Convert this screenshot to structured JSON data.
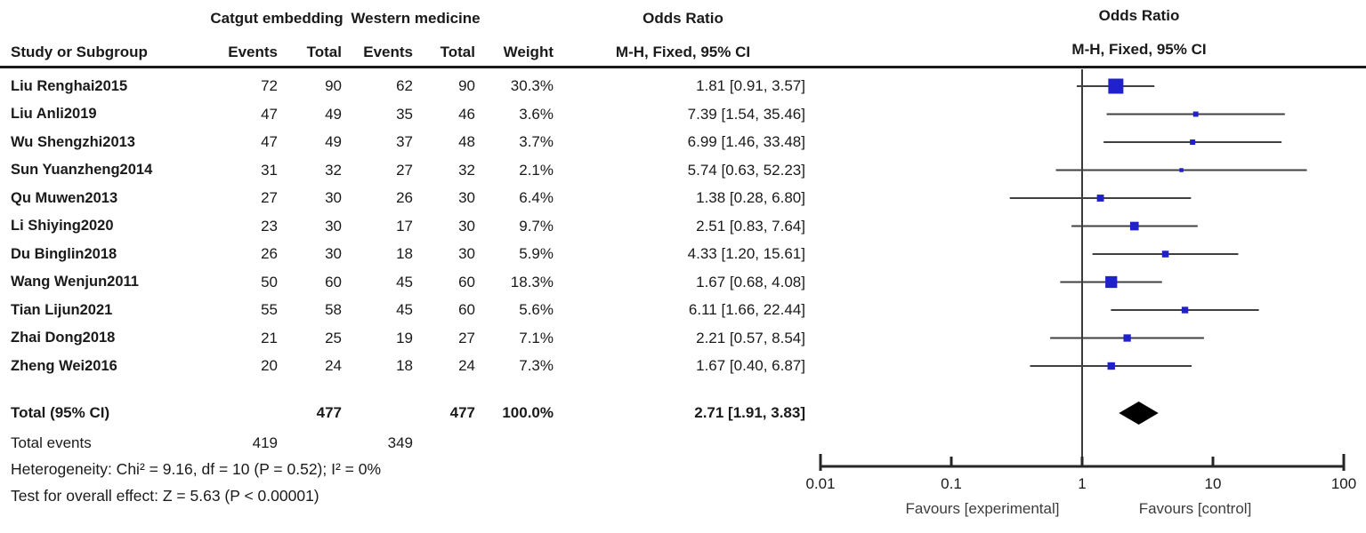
{
  "table": {
    "group1": "Catgut embedding",
    "group2": "Western medicine",
    "headers": {
      "study": "Study or Subgroup",
      "events1": "Events",
      "total1": "Total",
      "events2": "Events",
      "total2": "Total",
      "weight": "Weight",
      "or_title": "Odds Ratio",
      "or_method": "M-H, Fixed, 95% CI"
    },
    "total_row": {
      "label": "Total (95% CI)",
      "total1": "477",
      "total2": "477",
      "weight": "100.0%",
      "ci_text": "2.71 [1.91, 3.83]"
    },
    "total_events": {
      "label": "Total events",
      "events1": "419",
      "events2": "349"
    },
    "heterogeneity": "Heterogeneity: Chi² = 9.16, df = 10 (P = 0.52); I² = 0%",
    "overall_effect": "Test for overall effect: Z = 5.63 (P < 0.00001)"
  },
  "plot": {
    "or_title": "Odds Ratio",
    "or_method": "M-H, Fixed, 95% CI",
    "favours_left": "Favours [experimental]",
    "favours_right": "Favours [control]"
  },
  "chart_data": {
    "type": "forest",
    "x_scale": "log10",
    "x_range": [
      0.01,
      100
    ],
    "x_ticks": [
      "0.01",
      "0.1",
      "1",
      "10",
      "100"
    ],
    "null_line": 1,
    "marker_color": "#2121cc",
    "line_color": "#404040",
    "diamond_color": "#000000",
    "studies": [
      {
        "name": "Liu Renghai2015",
        "events1": "72",
        "total1": "90",
        "events2": "62",
        "total2": "90",
        "weight_pct": "30.3%",
        "weight": 30.3,
        "or": 1.81,
        "lo": 0.91,
        "hi": 3.57,
        "ci_text": "1.81 [0.91, 3.57]"
      },
      {
        "name": "Liu Anli2019",
        "events1": "47",
        "total1": "49",
        "events2": "35",
        "total2": "46",
        "weight_pct": "3.6%",
        "weight": 3.6,
        "or": 7.39,
        "lo": 1.54,
        "hi": 35.46,
        "ci_text": "7.39 [1.54, 35.46]"
      },
      {
        "name": "Wu Shengzhi2013",
        "events1": "47",
        "total1": "49",
        "events2": "37",
        "total2": "48",
        "weight_pct": "3.7%",
        "weight": 3.7,
        "or": 6.99,
        "lo": 1.46,
        "hi": 33.48,
        "ci_text": "6.99 [1.46, 33.48]"
      },
      {
        "name": "Sun Yuanzheng2014",
        "events1": "31",
        "total1": "32",
        "events2": "27",
        "total2": "32",
        "weight_pct": "2.1%",
        "weight": 2.1,
        "or": 5.74,
        "lo": 0.63,
        "hi": 52.23,
        "ci_text": "5.74 [0.63, 52.23]"
      },
      {
        "name": "Qu Muwen2013",
        "events1": "27",
        "total1": "30",
        "events2": "26",
        "total2": "30",
        "weight_pct": "6.4%",
        "weight": 6.4,
        "or": 1.38,
        "lo": 0.28,
        "hi": 6.8,
        "ci_text": "1.38 [0.28, 6.80]"
      },
      {
        "name": "Li Shiying2020",
        "events1": "23",
        "total1": "30",
        "events2": "17",
        "total2": "30",
        "weight_pct": "9.7%",
        "weight": 9.7,
        "or": 2.51,
        "lo": 0.83,
        "hi": 7.64,
        "ci_text": "2.51 [0.83, 7.64]"
      },
      {
        "name": "Du Binglin2018",
        "events1": "26",
        "total1": "30",
        "events2": "18",
        "total2": "30",
        "weight_pct": "5.9%",
        "weight": 5.9,
        "or": 4.33,
        "lo": 1.2,
        "hi": 15.61,
        "ci_text": "4.33 [1.20, 15.61]"
      },
      {
        "name": "Wang Wenjun2011",
        "events1": "50",
        "total1": "60",
        "events2": "45",
        "total2": "60",
        "weight_pct": "18.3%",
        "weight": 18.3,
        "or": 1.67,
        "lo": 0.68,
        "hi": 4.08,
        "ci_text": "1.67 [0.68, 4.08]"
      },
      {
        "name": "Tian Lijun2021",
        "events1": "55",
        "total1": "58",
        "events2": "45",
        "total2": "60",
        "weight_pct": "5.6%",
        "weight": 5.6,
        "or": 6.11,
        "lo": 1.66,
        "hi": 22.44,
        "ci_text": "6.11 [1.66, 22.44]"
      },
      {
        "name": "Zhai Dong2018",
        "events1": "21",
        "total1": "25",
        "events2": "19",
        "total2": "27",
        "weight_pct": "7.1%",
        "weight": 7.1,
        "or": 2.21,
        "lo": 0.57,
        "hi": 8.54,
        "ci_text": "2.21 [0.57, 8.54]"
      },
      {
        "name": "Zheng Wei2016",
        "events1": "20",
        "total1": "24",
        "events2": "18",
        "total2": "24",
        "weight_pct": "7.3%",
        "weight": 7.3,
        "or": 1.67,
        "lo": 0.4,
        "hi": 6.87,
        "ci_text": "1.67 [0.40, 6.87]"
      }
    ],
    "total": {
      "or": 2.71,
      "lo": 1.91,
      "hi": 3.83
    }
  }
}
